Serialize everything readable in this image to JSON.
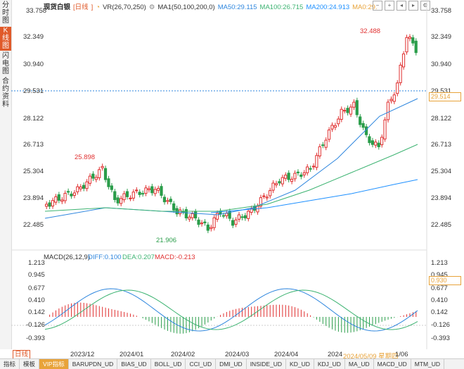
{
  "sidebar": {
    "tabs": [
      {
        "label": "分时图",
        "active": false
      },
      {
        "label": "K线图",
        "active": true
      },
      {
        "label": "闪电图",
        "active": false
      },
      {
        "label": "合约资料",
        "active": false
      }
    ]
  },
  "legend": {
    "symbol": "现货白银",
    "period": "日线",
    "vr": "VR(26,70,250)",
    "ma": "MA1(50,100,200,0)",
    "ma50": "MA50:29.115",
    "ma100": "MA100:26.715",
    "ma200": "MA200:24.913",
    "ma0": "MA0:29.",
    "colors": {
      "ma50": "#2e86de",
      "ma100": "#3cb371",
      "ma200": "#1e90ff",
      "ma0": "#e8a33a"
    }
  },
  "toolbar": {
    "icons": [
      "minus-icon",
      "plus-icon",
      "prev-icon",
      "next-icon",
      "settings-icon"
    ]
  },
  "price_axis": {
    "labels": [
      "33.758",
      "32.349",
      "30.940",
      "29.531",
      "28.122",
      "26.713",
      "25.304",
      "23.894",
      "22.485"
    ]
  },
  "price_tags": {
    "last": "29.531",
    "current": "29.514"
  },
  "annotations": {
    "high": "32.488",
    "mid_high": "25.898",
    "low": "21.906"
  },
  "macd": {
    "title": "MACD(26,12,9)",
    "diff": "DIFF:0.100",
    "dea": "DEA:0.207",
    "macd": "MACD:-0.213",
    "labels": [
      "1.213",
      "0.945",
      "0.677",
      "0.410",
      "0.142",
      "-0.126",
      "-0.393"
    ],
    "tag": "0.930"
  },
  "time_axis": {
    "labels": [
      "2023/12",
      "2024/01",
      "2024/02",
      "2024/03",
      "2024/04",
      "2024"
    ],
    "highlight": "2024/05/09 星期四",
    "tail": "1/06"
  },
  "period_label": "日线",
  "bottom_tabs": [
    {
      "label": "指标",
      "active": false
    },
    {
      "label": "模板",
      "active": false
    },
    {
      "label": "VIP指标",
      "active": true
    },
    {
      "label": "BARUPDN_UD",
      "active": false
    },
    {
      "label": "BIAS_UD",
      "active": false
    },
    {
      "label": "BOLL_UD",
      "active": false
    },
    {
      "label": "CCI_UD",
      "active": false
    },
    {
      "label": "DMI_UD",
      "active": false
    },
    {
      "label": "INSIDE_UD",
      "active": false
    },
    {
      "label": "KD_UD",
      "active": false
    },
    {
      "label": "KDJ_UD",
      "active": false
    },
    {
      "label": "MA_UD",
      "active": false
    },
    {
      "label": "MACD_UD",
      "active": false
    },
    {
      "label": "MTM_UD",
      "active": false
    }
  ]
}
